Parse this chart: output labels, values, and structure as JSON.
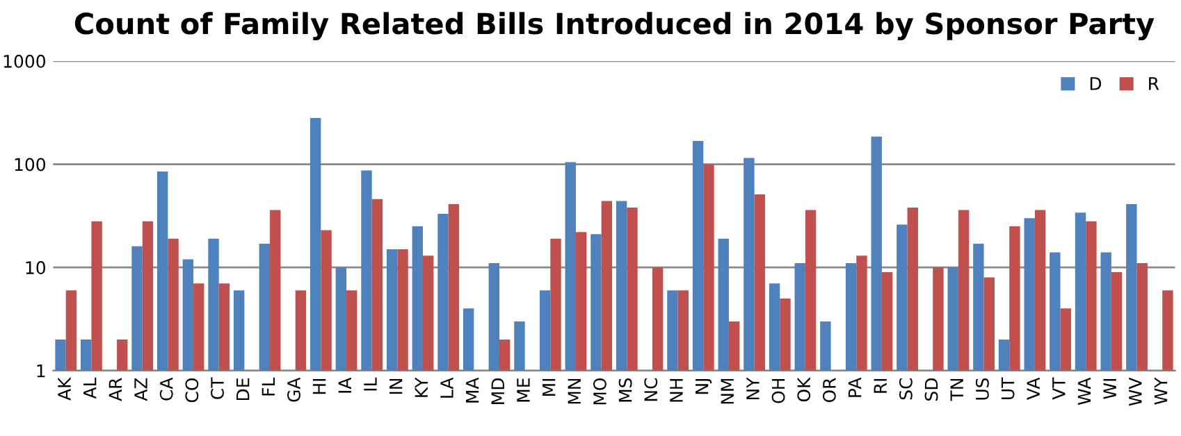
{
  "chart_data": {
    "type": "bar",
    "title": "Count of Family Related Bills Introduced in 2014 by Sponsor Party",
    "categories": [
      "AK",
      "AL",
      "AR",
      "AZ",
      "CA",
      "CO",
      "CT",
      "DE",
      "FL",
      "GA",
      "HI",
      "IA",
      "IL",
      "IN",
      "KY",
      "LA",
      "MA",
      "MD",
      "ME",
      "MI",
      "MN",
      "MO",
      "MS",
      "NC",
      "NH",
      "NJ",
      "NM",
      "NY",
      "OH",
      "OK",
      "OR",
      "PA",
      "RI",
      "SC",
      "SD",
      "TN",
      "US",
      "UT",
      "VA",
      "VT",
      "WA",
      "WI",
      "WV",
      "WY"
    ],
    "series": [
      {
        "name": "D",
        "color": "#4f81bd",
        "values": [
          2,
          2,
          null,
          16,
          85,
          12,
          19,
          6,
          17,
          null,
          280,
          10,
          87,
          15,
          25,
          33,
          4,
          11,
          3,
          6,
          105,
          21,
          44,
          null,
          6,
          168,
          19,
          115,
          7,
          11,
          3,
          11,
          185,
          26,
          null,
          10,
          17,
          2,
          30,
          14,
          34,
          14,
          41,
          null
        ]
      },
      {
        "name": "R",
        "color": "#c0504d",
        "values": [
          6,
          28,
          2,
          28,
          19,
          7,
          7,
          null,
          36,
          6,
          23,
          6,
          46,
          15,
          13,
          41,
          null,
          2,
          null,
          19,
          22,
          44,
          38,
          10,
          6,
          100,
          3,
          51,
          5,
          36,
          null,
          13,
          9,
          38,
          10,
          36,
          8,
          25,
          36,
          4,
          28,
          9,
          11,
          6
        ]
      }
    ],
    "log": true,
    "ylim": [
      1,
      1000
    ],
    "yticks": [
      1,
      10,
      100,
      1000
    ],
    "grid": "y",
    "legend": "top right"
  }
}
